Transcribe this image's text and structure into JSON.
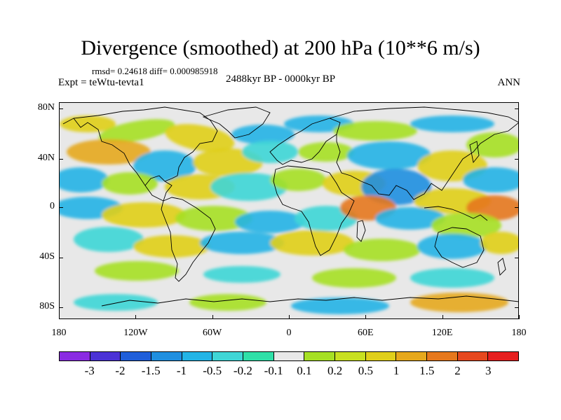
{
  "title": "Divergence (smoothed) at 200 hPa (10**6 m/s)",
  "stats": "rmsd= 0.24618 diff= 0.000985918",
  "experiment": "Expt = teWtu-tevta1",
  "period": "2488kyr BP - 0000kyr BP",
  "season": "ANN",
  "y_ticks": [
    "80N",
    "40N",
    "0",
    "40S",
    "80S"
  ],
  "x_ticks": [
    "180",
    "120W",
    "60W",
    "0",
    "60E",
    "120E",
    "180"
  ],
  "colorbar": {
    "colors": [
      "#8a2be2",
      "#4b32d6",
      "#1f5ed9",
      "#1f8fe0",
      "#22b4e6",
      "#3fd6d6",
      "#2fe0a8",
      "#e8e8e8",
      "#a6e024",
      "#c8e020",
      "#e0cf1a",
      "#e6a81c",
      "#e6781c",
      "#e6481e",
      "#e61e1e"
    ],
    "labels": [
      "-3",
      "-2",
      "-1.5",
      "-1",
      "-0.5",
      "-0.2",
      "-0.1",
      "0.1",
      "0.2",
      "0.5",
      "1",
      "1.5",
      "2",
      "3"
    ]
  },
  "palette": {
    "neg_strong": "#1f8fe0",
    "neg": "#22b4e6",
    "neg_weak": "#3fd6d6",
    "pos_weak": "#a6e024",
    "pos": "#e0cf1a",
    "pos_strong": "#e6a81c",
    "pos_max": "#e6781c"
  }
}
